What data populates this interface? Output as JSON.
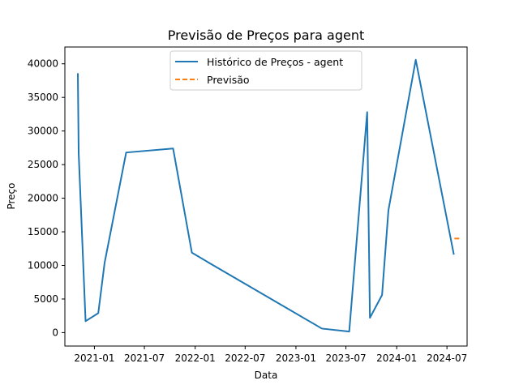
{
  "chart_data": {
    "type": "line",
    "title": "Previsão de Preços para agent",
    "xlabel": "Data",
    "ylabel": "Preço",
    "x_type": "date",
    "xlim": [
      "2020-09-16",
      "2024-09-12"
    ],
    "ylim": [
      -2000,
      42500
    ],
    "x_ticks": [
      {
        "value": "2021-01-01",
        "label": "2021-01"
      },
      {
        "value": "2021-07-01",
        "label": "2021-07"
      },
      {
        "value": "2022-01-01",
        "label": "2022-01"
      },
      {
        "value": "2022-07-01",
        "label": "2022-07"
      },
      {
        "value": "2023-01-01",
        "label": "2023-01"
      },
      {
        "value": "2023-07-01",
        "label": "2023-07"
      },
      {
        "value": "2024-01-01",
        "label": "2024-01"
      },
      {
        "value": "2024-07-01",
        "label": "2024-07"
      }
    ],
    "y_ticks": [
      {
        "value": 0,
        "label": "0"
      },
      {
        "value": 5000,
        "label": "5000"
      },
      {
        "value": 10000,
        "label": "10000"
      },
      {
        "value": 15000,
        "label": "15000"
      },
      {
        "value": 20000,
        "label": "20000"
      },
      {
        "value": 25000,
        "label": "25000"
      },
      {
        "value": 30000,
        "label": "30000"
      },
      {
        "value": 35000,
        "label": "35000"
      },
      {
        "value": 40000,
        "label": "40000"
      }
    ],
    "grid": false,
    "legend_position": "top-center",
    "series": [
      {
        "name": "Histórico de Preços - agent",
        "color": "#1f77b4",
        "style": "solid",
        "x": [
          "2020-11-02",
          "2020-11-05",
          "2020-11-30",
          "2021-01-15",
          "2021-02-07",
          "2021-04-26",
          "2021-10-13",
          "2021-12-20",
          "2022-02-28",
          "2023-04-05",
          "2023-07-13",
          "2023-09-16",
          "2023-09-26",
          "2023-11-09",
          "2023-12-02",
          "2024-03-10",
          "2024-07-26"
        ],
        "y": [
          38600,
          26700,
          1700,
          2900,
          10400,
          26800,
          27400,
          11900,
          10200,
          600,
          150,
          32800,
          2200,
          5600,
          18200,
          40600,
          11600
        ]
      },
      {
        "name": "Previsão",
        "color": "#ff7f0e",
        "style": "dashed",
        "x": [
          "2024-07-28",
          "2024-08-23"
        ],
        "y": [
          14000,
          14000
        ]
      }
    ]
  }
}
